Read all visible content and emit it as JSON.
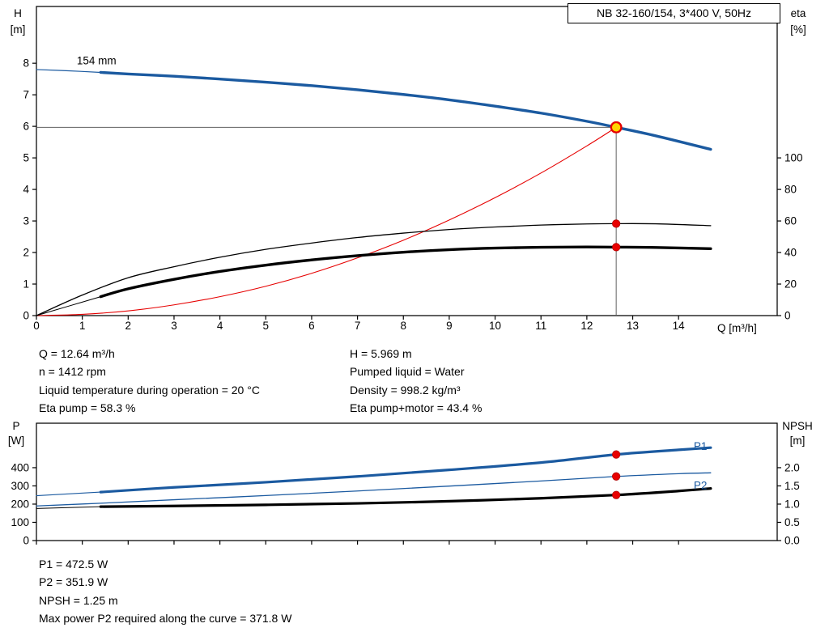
{
  "title_box": "NB 32-160/154, 3*400 V, 50Hz",
  "results_top": {
    "left": [
      "Q = 12.64 m³/h",
      "n = 1412 rpm",
      "Liquid temperature during operation = 20 °C",
      "Eta pump = 58.3 %"
    ],
    "right": [
      "H = 5.969 m",
      "Pumped liquid = Water",
      "Density = 998.2 kg/m³",
      "Eta pump+motor = 43.4 %"
    ]
  },
  "results_bottom": [
    "P1 = 472.5 W",
    "P2 = 351.9 W",
    "NPSH = 1.25 m",
    "Max power P2 required along the curve = 371.8 W"
  ],
  "colors": {
    "curve_blue": "#1b5aa0",
    "curve_black": "#000000",
    "system_red": "#e60000",
    "duty_yellow": "#ffd400",
    "dot_red": "#e80000",
    "crosshair_gray": "#606060"
  },
  "chart_data": [
    {
      "type": "line",
      "id": "head-chart",
      "title": "NB 32-160/154, 3*400 V, 50Hz",
      "x_axis": {
        "label": "Q [m³/h]",
        "min": 0,
        "max": 16.15,
        "tick_values": [
          0,
          1,
          2,
          3,
          4,
          5,
          6,
          7,
          8,
          9,
          10,
          11,
          12,
          13,
          14
        ],
        "tick_labels": [
          "0",
          "1",
          "2",
          "3",
          "4",
          "5",
          "6",
          "7",
          "8",
          "9",
          "10",
          "11",
          "12",
          "13",
          "14"
        ]
      },
      "y_left": {
        "label_lines": [
          "H",
          "[m]"
        ],
        "min": 0,
        "max": 9.8,
        "tick_values": [
          0,
          1,
          2,
          3,
          4,
          5,
          6,
          7,
          8
        ],
        "tick_labels": [
          "0",
          "1",
          "2",
          "3",
          "4",
          "5",
          "6",
          "7",
          "8"
        ]
      },
      "y_right": {
        "label_lines": [
          "eta",
          "[%]"
        ],
        "min": 0,
        "max": 196,
        "tick_values": [
          0,
          20,
          40,
          60,
          80,
          100
        ],
        "tick_labels": [
          "0",
          "20",
          "40",
          "60",
          "80",
          "100"
        ]
      },
      "series": [
        {
          "name": "head-curve-extrapolated",
          "axis": "left",
          "color": "#1b5aa0",
          "width": 1.2,
          "points": [
            [
              0,
              7.8
            ],
            [
              0.7,
              7.76
            ],
            [
              1.4,
              7.71
            ]
          ]
        },
        {
          "name": "system-curve",
          "axis": "left",
          "color": "#e60000",
          "width": 1.1,
          "points": [
            [
              0,
              0
            ],
            [
              1,
              0.04
            ],
            [
              2,
              0.15
            ],
            [
              3,
              0.34
            ],
            [
              4,
              0.6
            ],
            [
              5,
              0.93
            ],
            [
              6,
              1.34
            ],
            [
              7,
              1.83
            ],
            [
              8,
              2.39
            ],
            [
              9,
              3.03
            ],
            [
              10,
              3.74
            ],
            [
              11,
              4.52
            ],
            [
              12,
              5.38
            ],
            [
              12.64,
              5.969
            ]
          ]
        },
        {
          "name": "eta-pump-curve",
          "axis": "right",
          "color": "#000000",
          "width": 1.3,
          "points": [
            [
              0,
              0
            ],
            [
              1,
              13
            ],
            [
              2,
              24
            ],
            [
              3,
              31
            ],
            [
              4,
              37
            ],
            [
              5,
              42
            ],
            [
              6,
              46
            ],
            [
              7,
              49.5
            ],
            [
              8,
              52.3
            ],
            [
              9,
              54.6
            ],
            [
              10,
              56.2
            ],
            [
              11,
              57.4
            ],
            [
              12,
              58.1
            ],
            [
              12.64,
              58.3
            ],
            [
              13.5,
              58.2
            ],
            [
              14.7,
              57.0
            ]
          ]
        },
        {
          "name": "eta-pump-motor-extrapolated",
          "axis": "right",
          "color": "#000000",
          "width": 1.0,
          "points": [
            [
              0,
              0
            ],
            [
              0.7,
              6
            ],
            [
              1.4,
              12
            ]
          ]
        },
        {
          "name": "eta-pump-motor-curve",
          "axis": "right",
          "color": "#000000",
          "width": 3.4,
          "points": [
            [
              1.4,
              12
            ],
            [
              2,
              17
            ],
            [
              3,
              23
            ],
            [
              4,
              28
            ],
            [
              5,
              32
            ],
            [
              6,
              35.3
            ],
            [
              7,
              38
            ],
            [
              8,
              40.2
            ],
            [
              9,
              41.8
            ],
            [
              10,
              42.8
            ],
            [
              11,
              43.3
            ],
            [
              12,
              43.5
            ],
            [
              12.64,
              43.4
            ],
            [
              13.5,
              43.2
            ],
            [
              14.7,
              42.4
            ]
          ]
        },
        {
          "name": "head-curve",
          "axis": "left",
          "color": "#1b5aa0",
          "width": 3.4,
          "points": [
            [
              1.4,
              7.71
            ],
            [
              2,
              7.66
            ],
            [
              3,
              7.59
            ],
            [
              4,
              7.5
            ],
            [
              5,
              7.4
            ],
            [
              6,
              7.29
            ],
            [
              7,
              7.16
            ],
            [
              8,
              7.01
            ],
            [
              9,
              6.84
            ],
            [
              10,
              6.64
            ],
            [
              11,
              6.42
            ],
            [
              12,
              6.16
            ],
            [
              12.64,
              5.969
            ],
            [
              13.5,
              5.7
            ],
            [
              14.7,
              5.27
            ]
          ]
        }
      ],
      "crosshair": {
        "q": 12.64,
        "value": 5.969,
        "axis": "left",
        "color": "#606060"
      },
      "markers": [
        {
          "name": "duty-point",
          "q": 12.64,
          "value": 5.969,
          "axis": "left",
          "style": "duty"
        },
        {
          "name": "eta-pump-point",
          "q": 12.64,
          "value": 58.3,
          "axis": "right",
          "style": "dot"
        },
        {
          "name": "eta-pump-motor-point",
          "q": 12.64,
          "value": 43.4,
          "axis": "right",
          "style": "dot"
        }
      ],
      "labels": [
        {
          "text": "154 mm",
          "q": 0.88,
          "value": 7.97,
          "axis": "left",
          "color": "#000000",
          "anchor": "start"
        }
      ]
    },
    {
      "type": "line",
      "id": "power-chart",
      "title": "",
      "x_axis": {
        "label": "",
        "min": 0,
        "max": 16.15,
        "tick_values": [
          0,
          1,
          2,
          3,
          4,
          5,
          6,
          7,
          8,
          9,
          10,
          11,
          12,
          13,
          14
        ],
        "tick_labels": null
      },
      "y_left": {
        "label_lines": [
          "P",
          "[W]"
        ],
        "min": 0,
        "max": 644,
        "tick_values": [
          0,
          100,
          200,
          300,
          400
        ],
        "tick_labels": [
          "0",
          "100",
          "200",
          "300",
          "400"
        ]
      },
      "y_right": {
        "label_lines": [
          "NPSH",
          "[m]"
        ],
        "min": 0,
        "max": 3.22,
        "tick_values": [
          0,
          0.5,
          1,
          1.5,
          2
        ],
        "tick_labels": [
          "0.0",
          "0.5",
          "1.0",
          "1.5",
          "2.0"
        ]
      },
      "series": [
        {
          "name": "p1-curve-extrapolated",
          "axis": "left",
          "color": "#1b5aa0",
          "width": 1.1,
          "points": [
            [
              0,
              246
            ],
            [
              1.4,
              266
            ]
          ]
        },
        {
          "name": "p2-curve",
          "axis": "left",
          "color": "#1b5aa0",
          "width": 1.3,
          "points": [
            [
              0,
              190
            ],
            [
              1.4,
              205
            ],
            [
              3,
              224
            ],
            [
              5,
              247
            ],
            [
              7,
              272
            ],
            [
              9,
              299
            ],
            [
              11,
              327
            ],
            [
              12.64,
              351.9
            ],
            [
              14,
              367
            ],
            [
              14.7,
              371.8
            ]
          ]
        },
        {
          "name": "npsh-curve-extrapolated",
          "axis": "right",
          "color": "#000000",
          "width": 1.0,
          "points": [
            [
              0,
              0.88
            ],
            [
              1.4,
              0.93
            ]
          ]
        },
        {
          "name": "npsh-curve",
          "axis": "right",
          "color": "#000000",
          "width": 3.2,
          "points": [
            [
              1.4,
              0.93
            ],
            [
              3,
              0.95
            ],
            [
              5,
              0.98
            ],
            [
              7,
              1.02
            ],
            [
              9,
              1.08
            ],
            [
              11,
              1.16
            ],
            [
              12.64,
              1.25
            ],
            [
              14,
              1.36
            ],
            [
              14.7,
              1.43
            ]
          ]
        },
        {
          "name": "p1-curve",
          "axis": "left",
          "color": "#1b5aa0",
          "width": 3.2,
          "points": [
            [
              1.4,
              266
            ],
            [
              3,
              292
            ],
            [
              5,
              320
            ],
            [
              7,
              352
            ],
            [
              9,
              388
            ],
            [
              11,
              428
            ],
            [
              12.64,
              472.5
            ],
            [
              14,
              498
            ],
            [
              14.7,
              510
            ]
          ]
        }
      ],
      "crosshair": null,
      "markers": [
        {
          "name": "p1-point",
          "q": 12.64,
          "value": 472.5,
          "axis": "left",
          "style": "dot"
        },
        {
          "name": "p2-point",
          "q": 12.64,
          "value": 351.9,
          "axis": "left",
          "style": "dot"
        },
        {
          "name": "npsh-point",
          "q": 12.64,
          "value": 1.25,
          "axis": "right",
          "style": "dot"
        }
      ],
      "labels": [
        {
          "text": "P1",
          "q": 14.33,
          "value": 497,
          "axis": "left",
          "color": "#1b5aa0",
          "anchor": "start"
        },
        {
          "text": "P2",
          "q": 14.33,
          "value": 283,
          "axis": "left",
          "color": "#1b5aa0",
          "anchor": "start"
        }
      ]
    }
  ]
}
